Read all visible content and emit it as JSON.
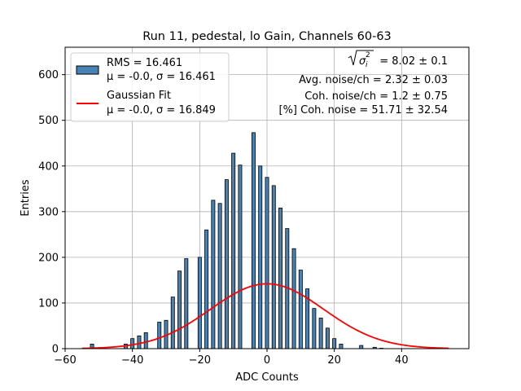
{
  "chart_data": {
    "type": "bar",
    "title": "Run 11, pedestal, lo Gain, Channels 60-63",
    "xlabel": "ADC Counts",
    "ylabel": "Entries",
    "xlim": [
      -60,
      60
    ],
    "ylim": [
      0,
      660
    ],
    "grid": true,
    "legend_position": "top-left",
    "x_ticks": [
      -60,
      -40,
      -20,
      0,
      20,
      40
    ],
    "y_ticks": [
      0,
      100,
      200,
      300,
      400,
      500,
      600
    ],
    "x_tick_labels": [
      "−60",
      "−40",
      "−20",
      "0",
      "20",
      "40"
    ],
    "y_tick_labels": [
      "0",
      "100",
      "200",
      "300",
      "400",
      "500",
      "600"
    ],
    "bin_width": 1,
    "histogram": {
      "name": "RMS = 16.461",
      "name_line2": "μ = -0.0, σ = 16.461",
      "color": "#4682b4",
      "edge_color": "#000000",
      "x": [
        -52,
        -50,
        -48,
        -46,
        -44,
        -42,
        -40,
        -38,
        -36,
        -34,
        -32,
        -30,
        -28,
        -26,
        -24,
        -22,
        -20,
        -18,
        -16,
        -14,
        -12,
        -10,
        -8,
        -6,
        -4,
        -2,
        0,
        2,
        4,
        6,
        8,
        10,
        12,
        14,
        16,
        18,
        20,
        22,
        24,
        26,
        28,
        30,
        32,
        34,
        36,
        38,
        40,
        42,
        44,
        46,
        48,
        50,
        52
      ],
      "values": [
        10,
        0,
        0,
        0,
        0,
        10,
        22,
        28,
        35,
        0,
        58,
        62,
        113,
        170,
        197,
        0,
        200,
        260,
        325,
        318,
        370,
        428,
        402,
        0,
        473,
        400,
        375,
        357,
        308,
        263,
        219,
        172,
        131,
        88,
        67,
        45,
        22,
        10,
        0,
        0,
        7,
        0,
        3,
        1,
        0,
        0,
        0,
        0,
        0,
        0,
        0,
        0,
        0
      ]
    },
    "fit": {
      "name": "Gaussian Fit",
      "name_line2": "μ = -0.0, σ = 16.849",
      "color": "#ff0000",
      "type": "gaussian",
      "mu": 0.0,
      "sigma": 16.849,
      "peak": 142,
      "x_range": [
        -55,
        54
      ]
    },
    "annotations": [
      {
        "lhs": "σ",
        "lhs_sub": "i",
        "lhs_sup": "2",
        "value": "= 8.02 ± 0.1"
      },
      {
        "text": "Avg. noise/ch = 2.32 ± 0.03"
      },
      {
        "text": "Coh. noise/ch = 1.2 ± 0.75"
      },
      {
        "text": "[%] Coh. noise = 51.71 ± 32.54"
      }
    ]
  }
}
